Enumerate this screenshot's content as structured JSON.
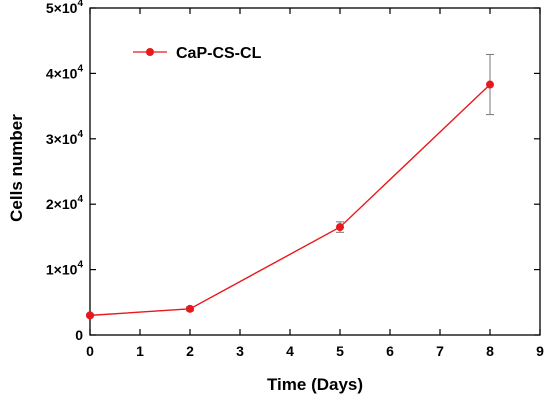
{
  "chart_data": {
    "type": "line",
    "xlabel": "Time (Days)",
    "ylabel": "Cells number",
    "xlim": [
      0,
      9
    ],
    "ylim": [
      0,
      50000
    ],
    "x_ticks": [
      0,
      1,
      2,
      3,
      4,
      5,
      6,
      7,
      8,
      9
    ],
    "x_tick_labels": [
      "0",
      "1",
      "2",
      "3",
      "4",
      "5",
      "6",
      "7",
      "8",
      "9"
    ],
    "y_ticks": [
      0,
      10000,
      20000,
      30000,
      40000,
      50000
    ],
    "y_tick_labels": [
      {
        "base": "0",
        "exp": ""
      },
      {
        "base": "1×10",
        "exp": "4"
      },
      {
        "base": "2×10",
        "exp": "4"
      },
      {
        "base": "3×10",
        "exp": "4"
      },
      {
        "base": "4×10",
        "exp": "4"
      },
      {
        "base": "5×10",
        "exp": "4"
      }
    ],
    "grid": false,
    "legend_position": "top-left",
    "series": [
      {
        "name": "CaP-CS-CL",
        "color": "#e8191d",
        "marker": "circle",
        "x": [
          0,
          2,
          5,
          8
        ],
        "y": [
          3000,
          4000,
          16500,
          38300
        ],
        "error": [
          200,
          300,
          800,
          4600
        ]
      }
    ]
  }
}
